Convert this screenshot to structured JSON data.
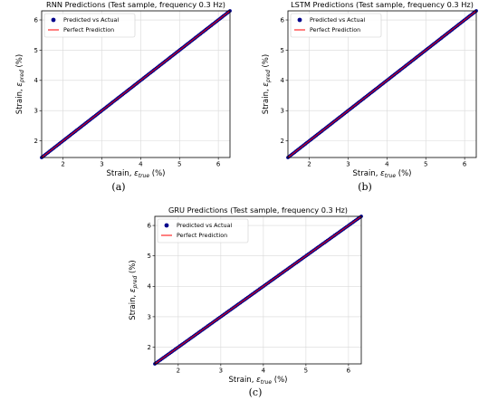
{
  "figure": {
    "captions": [
      "(a)",
      "(b)",
      "(c)"
    ]
  },
  "chart_data": [
    {
      "type": "scatter",
      "title": "RNN Predictions (Test sample, frequency 0.3 Hz)",
      "xlabel": {
        "prefix": "Strain, ",
        "symbol": "ε",
        "sub": "true",
        "suffix": " (%)"
      },
      "ylabel": {
        "prefix": "Strain, ",
        "symbol": "ε",
        "sub": "pred",
        "suffix": " (%)"
      },
      "xlim": [
        1.45,
        6.3
      ],
      "ylim": [
        1.45,
        6.3
      ],
      "xticks": [
        2,
        3,
        4,
        5,
        6
      ],
      "yticks": [
        2,
        3,
        4,
        5,
        6
      ],
      "grid": true,
      "legend_position": "top-left",
      "series": [
        {
          "name": "Predicted vs Actual",
          "kind": "scatter",
          "color": "#00008b",
          "x_range": [
            1.45,
            6.3
          ],
          "y_equals_x": true
        },
        {
          "name": "Perfect Prediction",
          "kind": "line",
          "color": "#ff0000",
          "x": [
            1.45,
            6.3
          ],
          "y": [
            1.45,
            6.3
          ]
        }
      ]
    },
    {
      "type": "scatter",
      "title": "LSTM Predictions (Test sample, frequency 0.3 Hz)",
      "xlabel": {
        "prefix": "Strain, ",
        "symbol": "ε",
        "sub": "true",
        "suffix": " (%)"
      },
      "ylabel": {
        "prefix": "Strain, ",
        "symbol": "ε",
        "sub": "pred",
        "suffix": " (%)"
      },
      "xlim": [
        1.45,
        6.3
      ],
      "ylim": [
        1.45,
        6.3
      ],
      "xticks": [
        2,
        3,
        4,
        5,
        6
      ],
      "yticks": [
        2,
        3,
        4,
        5,
        6
      ],
      "grid": true,
      "legend_position": "top-left",
      "series": [
        {
          "name": "Predicted vs Actual",
          "kind": "scatter",
          "color": "#00008b",
          "x_range": [
            1.45,
            6.3
          ],
          "y_equals_x": true
        },
        {
          "name": "Perfect Prediction",
          "kind": "line",
          "color": "#ff0000",
          "x": [
            1.45,
            6.3
          ],
          "y": [
            1.45,
            6.3
          ]
        }
      ]
    },
    {
      "type": "scatter",
      "title": "GRU Predictions (Test sample, frequency 0.3 Hz)",
      "xlabel": {
        "prefix": "Strain, ",
        "symbol": "ε",
        "sub": "true",
        "suffix": " (%)"
      },
      "ylabel": {
        "prefix": "Strain, ",
        "symbol": "ε",
        "sub": "pred",
        "suffix": " (%)"
      },
      "xlim": [
        1.45,
        6.3
      ],
      "ylim": [
        1.45,
        6.3
      ],
      "xticks": [
        2,
        3,
        4,
        5,
        6
      ],
      "yticks": [
        2,
        3,
        4,
        5,
        6
      ],
      "grid": true,
      "legend_position": "top-left",
      "series": [
        {
          "name": "Predicted vs Actual",
          "kind": "scatter",
          "color": "#00008b",
          "x_range": [
            1.45,
            6.3
          ],
          "y_equals_x": true
        },
        {
          "name": "Perfect Prediction",
          "kind": "line",
          "color": "#ff0000",
          "x": [
            1.45,
            6.3
          ],
          "y": [
            1.45,
            6.3
          ]
        }
      ]
    }
  ]
}
